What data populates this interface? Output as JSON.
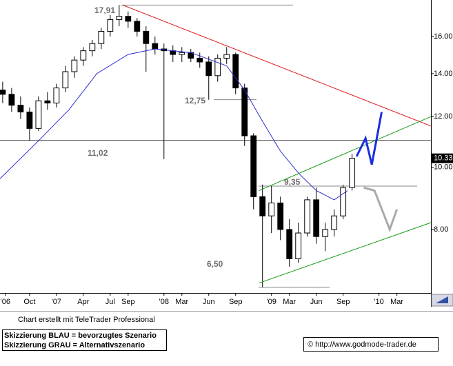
{
  "chart_data": {
    "type": "candlestick",
    "x": [
      6,
      7,
      8,
      9,
      10,
      11,
      12,
      13,
      14,
      15,
      16,
      17,
      18,
      19,
      20,
      21,
      22,
      23,
      24,
      25,
      26,
      27,
      28,
      29,
      30,
      31,
      32,
      33,
      34,
      35,
      36,
      37,
      38,
      39,
      40,
      41,
      42,
      43,
      44,
      45
    ],
    "open": [
      13.2,
      13.0,
      12.5,
      12.2,
      11.5,
      12.7,
      12.6,
      13.3,
      14.1,
      14.7,
      15.2,
      15.6,
      16.3,
      17.0,
      17.2,
      16.9,
      16.3,
      15.6,
      15.3,
      15.2,
      15.0,
      15.1,
      14.8,
      14.6,
      13.9,
      14.8,
      15.0,
      13.3,
      11.2,
      9.0,
      8.4,
      8.8,
      8.0,
      7.2,
      7.9,
      8.9,
      7.8,
      8.0,
      8.4,
      9.3
    ],
    "high": [
      13.6,
      13.3,
      12.9,
      12.4,
      12.9,
      13.1,
      13.5,
      14.4,
      14.9,
      15.4,
      15.8,
      16.5,
      17.3,
      17.91,
      17.5,
      17.1,
      16.6,
      16.0,
      15.6,
      15.5,
      15.4,
      15.3,
      15.1,
      14.9,
      15.0,
      15.4,
      15.1,
      13.5,
      11.3,
      9.4,
      9.35,
      9.0,
      8.3,
      8.2,
      9.0,
      9.3,
      8.2,
      8.6,
      9.4,
      10.5
    ],
    "low": [
      12.6,
      12.2,
      11.9,
      11.0,
      11.4,
      12.3,
      12.4,
      13.1,
      13.8,
      14.4,
      14.9,
      15.3,
      16.0,
      16.6,
      16.5,
      16.0,
      14.1,
      15.0,
      10.3,
      14.6,
      14.6,
      14.6,
      14.3,
      12.75,
      13.6,
      14.5,
      13.0,
      10.8,
      8.6,
      6.5,
      7.9,
      7.7,
      7.0,
      7.1,
      7.8,
      7.6,
      7.4,
      7.8,
      8.3,
      9.2
    ],
    "close": [
      13.0,
      12.5,
      12.2,
      11.5,
      12.7,
      12.6,
      13.3,
      14.1,
      14.7,
      15.2,
      15.6,
      16.3,
      17.0,
      17.2,
      16.9,
      16.3,
      15.6,
      15.3,
      15.2,
      15.0,
      15.1,
      14.8,
      14.6,
      13.9,
      14.8,
      15.0,
      13.3,
      11.2,
      9.0,
      8.4,
      8.8,
      8.0,
      7.2,
      7.9,
      8.9,
      7.8,
      8.0,
      8.4,
      9.3,
      10.33
    ],
    "xlim": [
      5.7,
      53.8
    ],
    "xticks": [
      {
        "value": 6.3,
        "label": "'06"
      },
      {
        "value": 9,
        "label": "Oct"
      },
      {
        "value": 12,
        "label": "'07"
      },
      {
        "value": 15,
        "label": "Apr"
      },
      {
        "value": 18,
        "label": "Jul"
      },
      {
        "value": 20,
        "label": "Sep"
      },
      {
        "value": 24,
        "label": "'08"
      },
      {
        "value": 26,
        "label": "Mar"
      },
      {
        "value": 29,
        "label": "Jun"
      },
      {
        "value": 32,
        "label": "Sep"
      },
      {
        "value": 36,
        "label": "'09"
      },
      {
        "value": 38,
        "label": "Mar"
      },
      {
        "value": 41,
        "label": "Jun"
      },
      {
        "value": 44,
        "label": "Sep"
      },
      {
        "value": 48,
        "label": "'10"
      },
      {
        "value": 50,
        "label": "Mar"
      }
    ],
    "ylim": [
      6.37,
      18.24
    ],
    "log_scale": true,
    "yticks": [
      {
        "value": 8,
        "label": "8.00"
      },
      {
        "value": 10,
        "label": "10.00"
      },
      {
        "value": 12,
        "label": "12.00"
      },
      {
        "value": 14,
        "label": "14.00"
      },
      {
        "value": 16,
        "label": "16.00"
      }
    ],
    "levels": [
      {
        "value": 17.91,
        "label": "17,91"
      },
      {
        "value": 12.75,
        "label": "12,75"
      },
      {
        "value": 11.02,
        "label": "11,02"
      },
      {
        "value": 9.35,
        "label": "9,35"
      },
      {
        "value": 6.5,
        "label": "6,50"
      }
    ],
    "lines": [
      {
        "color": "#2a2ad0",
        "x": [
          5.7,
          10,
          13.4,
          16.5,
          20,
          23,
          27,
          31,
          33,
          35,
          37,
          39,
          41,
          43,
          44.5
        ],
        "y": [
          9.6,
          11.0,
          12.3,
          14.0,
          15.0,
          15.3,
          15.1,
          14.4,
          13.2,
          11.8,
          10.6,
          9.8,
          9.2,
          8.9,
          9.2
        ]
      },
      {
        "color": "#e02020",
        "x": [
          19.4,
          53.8
        ],
        "y": [
          17.91,
          11.6
        ]
      },
      {
        "color": "#119911",
        "x": [
          34.6,
          53.8
        ],
        "y": [
          9.2,
          12.0
        ]
      },
      {
        "color": "#119911",
        "x": [
          34.6,
          53.8
        ],
        "y": [
          6.6,
          8.2
        ]
      },
      {
        "color": "#1a2ee0",
        "x": [
          45.5,
          46.5,
          47.2,
          48.3
        ],
        "y": [
          10.4,
          11.1,
          10.1,
          12.2
        ]
      },
      {
        "color": "#aaaaaa",
        "x": [
          46.3,
          47.5,
          49.2,
          50
        ],
        "y": [
          9.3,
          9.2,
          8.0,
          8.6
        ]
      }
    ],
    "footer": {
      "credit": "Chart erstellt mit TeleTrader Professional",
      "legend_blue": "Skizzierung BLAU = bevorzugtes Szenario",
      "legend_grey": "Skizzierung GRAU = Alternativszenario",
      "source": "© http://www.godmode-trader.de"
    }
  }
}
